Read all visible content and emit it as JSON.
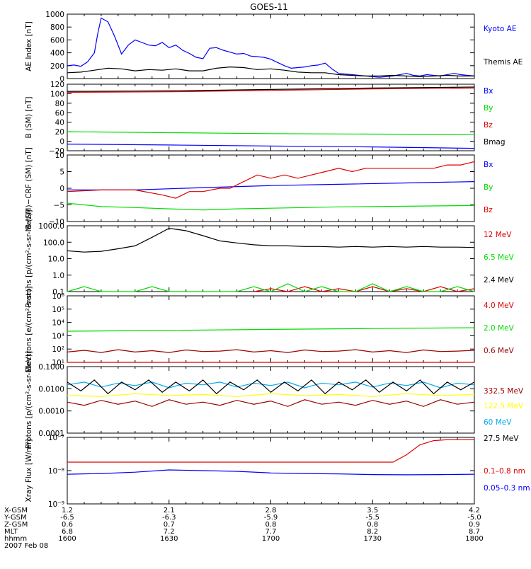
{
  "title": "GOES-11",
  "date": "2007 Feb 08",
  "colors": {
    "black": "#000000",
    "blue": "#0000ff",
    "green": "#00dd00",
    "red": "#dd0000",
    "darkred": "#990000",
    "cyan": "#00aaee",
    "yellow": "#ffff00"
  },
  "orbit": {
    "rows": [
      {
        "label": "X-GSM",
        "values": [
          "1.2",
          "2.1",
          "2.8",
          "3.5",
          "4.2"
        ]
      },
      {
        "label": "Y-GSM",
        "values": [
          "-6.5",
          "-6.3",
          "-5.9",
          "-5.5",
          "-5.0"
        ]
      },
      {
        "label": "Z-GSM",
        "values": [
          "0.6",
          "0.7",
          "0.8",
          "0.8",
          "0.9"
        ]
      },
      {
        "label": "MLT",
        "values": [
          "6.8",
          "7.2",
          "7.7",
          "8.2",
          "8.7"
        ]
      },
      {
        "label": "hhmm",
        "values": [
          "1600",
          "1630",
          "1700",
          "1730",
          "1800"
        ]
      }
    ]
  },
  "chart_data": [
    {
      "type": "line",
      "panel": "ae",
      "ylabel": "AE Index [nT]",
      "ylim": [
        0,
        1000
      ],
      "ytick_labels": [
        "1000",
        "800",
        "600",
        "400",
        "200",
        "0"
      ],
      "series": [
        {
          "name": "Kyoto AE",
          "color": "blue",
          "x": [
            0,
            2,
            4,
            6,
            8,
            9,
            10,
            12,
            14,
            16,
            18,
            20,
            22,
            24,
            26,
            28,
            30,
            32,
            34,
            36,
            38,
            40,
            42,
            44,
            46,
            48,
            50,
            52,
            54,
            56,
            58,
            60,
            62,
            64,
            66,
            68,
            70,
            72,
            74,
            76,
            78,
            80,
            82,
            84,
            86,
            88,
            90,
            92,
            94,
            96,
            98,
            100,
            102,
            104,
            106,
            108,
            110,
            112,
            114,
            116,
            118,
            120
          ],
          "y": [
            200,
            210,
            190,
            260,
            400,
            700,
            940,
            880,
            650,
            380,
            520,
            600,
            560,
            520,
            510,
            560,
            480,
            520,
            440,
            390,
            330,
            310,
            470,
            480,
            440,
            410,
            380,
            390,
            350,
            340,
            330,
            300,
            250,
            200,
            160,
            170,
            180,
            200,
            210,
            240,
            150,
            80,
            70,
            60,
            50,
            40,
            30,
            20,
            30,
            40,
            60,
            80,
            50,
            40,
            60,
            50,
            40,
            60,
            80,
            60,
            50,
            40
          ]
        },
        {
          "name": "Themis AE",
          "color": "black",
          "x": [
            0,
            4,
            8,
            12,
            16,
            20,
            24,
            28,
            32,
            36,
            40,
            44,
            48,
            52,
            56,
            60,
            64,
            68,
            72,
            76,
            80,
            84,
            88,
            92,
            96,
            100,
            104,
            108,
            112,
            116,
            120
          ],
          "y": [
            90,
            100,
            130,
            160,
            150,
            120,
            140,
            130,
            150,
            120,
            120,
            160,
            180,
            170,
            140,
            150,
            130,
            100,
            90,
            90,
            60,
            50,
            40,
            40,
            50,
            40,
            30,
            40,
            50,
            40,
            40
          ]
        }
      ]
    },
    {
      "type": "line",
      "panel": "b",
      "ylabel": "B (SM) [nT]",
      "ylim": [
        -20,
        120
      ],
      "ytick_labels": [
        "120",
        "100",
        "80",
        "60",
        "40",
        "20",
        "0",
        "−20"
      ],
      "series": [
        {
          "name": "Bx",
          "color": "blue",
          "x": [
            0,
            30,
            60,
            90,
            120
          ],
          "y": [
            -6,
            -8,
            -10,
            -12,
            -15
          ]
        },
        {
          "name": "By",
          "color": "green",
          "x": [
            0,
            30,
            60,
            90,
            120
          ],
          "y": [
            20,
            18,
            16,
            15,
            14
          ]
        },
        {
          "name": "Bz",
          "color": "red",
          "x": [
            0,
            30,
            60,
            90,
            120
          ],
          "y": [
            103,
            104,
            107,
            110,
            112
          ]
        },
        {
          "name": "Bmag",
          "color": "black",
          "x": [
            0,
            30,
            60,
            90,
            120
          ],
          "y": [
            105,
            106,
            109,
            112,
            114
          ]
        }
      ]
    },
    {
      "type": "line",
      "panel": "bdiff",
      "ylabel": "B (SM)−CRF (SM) [nT]",
      "ylim": [
        -10,
        10
      ],
      "ytick_labels": [
        "10",
        "5",
        "0",
        "−5",
        "−10"
      ],
      "series": [
        {
          "name": "Bx",
          "color": "blue",
          "x": [
            0,
            20,
            40,
            60,
            80,
            100,
            120
          ],
          "y": [
            -0.5,
            -0.5,
            0.2,
            0.8,
            1.2,
            1.6,
            2.0
          ]
        },
        {
          "name": "By",
          "color": "green",
          "x": [
            0,
            10,
            20,
            30,
            40,
            50,
            60,
            70,
            80,
            90,
            100,
            110,
            120
          ],
          "y": [
            -4.5,
            -5.5,
            -5.8,
            -6.2,
            -6.5,
            -6.2,
            -6.0,
            -5.8,
            -5.6,
            -5.5,
            -5.4,
            -5.3,
            -5.2
          ]
        },
        {
          "name": "Bz",
          "color": "red",
          "x": [
            0,
            10,
            20,
            28,
            32,
            36,
            40,
            45,
            48,
            52,
            56,
            60,
            64,
            68,
            72,
            76,
            80,
            84,
            88,
            92,
            96,
            100,
            104,
            108,
            112,
            116,
            120
          ],
          "y": [
            -1,
            -0.5,
            -0.5,
            -2,
            -3,
            -1,
            -1,
            0,
            0,
            2,
            4,
            3,
            4,
            3,
            4,
            5,
            6,
            5,
            6,
            6,
            6,
            6,
            6,
            6,
            7,
            7,
            8
          ]
        }
      ]
    },
    {
      "type": "line",
      "panel": "protons",
      "yscale": "log",
      "ylabel": "Protons [p/(cm²-s-sr-MeV)]",
      "ylim": [
        0.1,
        1000
      ],
      "ytick_labels": [
        "1000.0",
        "100.0",
        "10.0",
        "1.0",
        "0.1"
      ],
      "series": [
        {
          "name": "12 MeV",
          "color": "red",
          "x": [
            55,
            60,
            65,
            70,
            75,
            80,
            85,
            90,
            95,
            100,
            105,
            110,
            115,
            120
          ],
          "y": [
            0.1,
            0.15,
            0.1,
            0.2,
            0.1,
            0.15,
            0.1,
            0.2,
            0.1,
            0.15,
            0.1,
            0.2,
            0.1,
            0.15
          ]
        },
        {
          "name": "6.5 MeV",
          "color": "green",
          "x": [
            0,
            5,
            10,
            15,
            20,
            25,
            30,
            35,
            40,
            45,
            50,
            55,
            60,
            65,
            70,
            75,
            80,
            85,
            90,
            95,
            100,
            105,
            110,
            115,
            120
          ],
          "y": [
            0.1,
            0.2,
            0.1,
            0.1,
            0.1,
            0.2,
            0.1,
            0.1,
            0.1,
            0.1,
            0.1,
            0.2,
            0.1,
            0.3,
            0.1,
            0.2,
            0.1,
            0.1,
            0.3,
            0.1,
            0.2,
            0.1,
            0.1,
            0.2,
            0.1
          ]
        },
        {
          "name": "2.4 MeV",
          "color": "black",
          "x": [
            0,
            5,
            10,
            15,
            20,
            25,
            30,
            35,
            40,
            45,
            50,
            55,
            60,
            65,
            70,
            75,
            80,
            85,
            90,
            95,
            100,
            105,
            110,
            115,
            120
          ],
          "y": [
            30,
            25,
            28,
            40,
            60,
            200,
            700,
            500,
            250,
            120,
            90,
            70,
            60,
            60,
            55,
            55,
            50,
            55,
            50,
            55,
            50,
            55,
            50,
            50,
            48
          ]
        }
      ]
    },
    {
      "type": "line",
      "panel": "electrons",
      "yscale": "log",
      "ylabel": "Electrons [e/(cm²-s-sr)]",
      "ylim": [
        10,
        1000000
      ],
      "ytick_labels": [
        "10⁶",
        "10⁵",
        "10⁴",
        "10³",
        "10²",
        "10¹"
      ],
      "series": [
        {
          "name": "4.0 MeV",
          "color": "red",
          "x": [
            0,
            120
          ],
          "y": [
            10,
            10
          ]
        },
        {
          "name": "2.0 MeV",
          "color": "green",
          "x": [
            0,
            30,
            60,
            90,
            120
          ],
          "y": [
            2200,
            2500,
            3000,
            3500,
            4000
          ]
        },
        {
          "name": "0.6 MeV",
          "color": "darkred",
          "x": [
            0,
            5,
            10,
            15,
            20,
            25,
            30,
            35,
            40,
            45,
            50,
            55,
            60,
            65,
            70,
            75,
            80,
            85,
            90,
            95,
            100,
            105,
            110,
            115,
            120
          ],
          "y": [
            60,
            80,
            55,
            90,
            60,
            75,
            55,
            85,
            65,
            70,
            90,
            60,
            75,
            55,
            85,
            65,
            70,
            90,
            60,
            75,
            55,
            85,
            65,
            70,
            80
          ]
        }
      ]
    },
    {
      "type": "line",
      "panel": "hiprotons",
      "yscale": "log",
      "ylabel": "Protons [p/(cm²-s-sr-MeV)]",
      "ylim": [
        0.0001,
        0.1
      ],
      "ytick_labels": [
        "0.1000",
        "0.0100",
        "0.0010",
        "0.0001"
      ],
      "series": [
        {
          "name": "332.5 MeV",
          "color": "darkred",
          "x": [
            0,
            5,
            10,
            15,
            20,
            25,
            30,
            35,
            40,
            45,
            50,
            55,
            60,
            65,
            70,
            75,
            80,
            85,
            90,
            95,
            100,
            105,
            110,
            115,
            120
          ],
          "y": [
            0.0025,
            0.0018,
            0.003,
            0.002,
            0.0028,
            0.0016,
            0.0032,
            0.002,
            0.0025,
            0.0018,
            0.003,
            0.002,
            0.0028,
            0.0016,
            0.0032,
            0.002,
            0.0025,
            0.0018,
            0.003,
            0.002,
            0.0028,
            0.0016,
            0.0032,
            0.002,
            0.0025
          ]
        },
        {
          "name": "122.5 MeV",
          "color": "yellow",
          "x": [
            0,
            10,
            20,
            30,
            40,
            50,
            60,
            70,
            80,
            90,
            100,
            110,
            120
          ],
          "y": [
            0.005,
            0.0045,
            0.006,
            0.005,
            0.0055,
            0.0045,
            0.006,
            0.005,
            0.0055,
            0.0045,
            0.006,
            0.005,
            0.0055
          ]
        },
        {
          "name": "60 MeV",
          "color": "cyan",
          "x": [
            0,
            5,
            10,
            15,
            20,
            25,
            30,
            35,
            40,
            45,
            50,
            55,
            60,
            65,
            70,
            75,
            80,
            85,
            90,
            95,
            100,
            105,
            110,
            115,
            120
          ],
          "y": [
            0.015,
            0.02,
            0.012,
            0.018,
            0.014,
            0.02,
            0.011,
            0.018,
            0.015,
            0.02,
            0.012,
            0.018,
            0.014,
            0.02,
            0.011,
            0.018,
            0.015,
            0.02,
            0.012,
            0.018,
            0.014,
            0.02,
            0.011,
            0.018,
            0.015
          ]
        },
        {
          "name": "27.5 MeV",
          "color": "black",
          "x": [
            0,
            4,
            8,
            12,
            16,
            20,
            24,
            28,
            32,
            36,
            40,
            44,
            48,
            52,
            56,
            60,
            64,
            68,
            72,
            76,
            80,
            84,
            88,
            92,
            96,
            100,
            104,
            108,
            112,
            116,
            120
          ],
          "y": [
            0.02,
            0.008,
            0.025,
            0.006,
            0.02,
            0.009,
            0.025,
            0.007,
            0.02,
            0.008,
            0.025,
            0.006,
            0.02,
            0.009,
            0.025,
            0.007,
            0.02,
            0.008,
            0.025,
            0.006,
            0.02,
            0.009,
            0.025,
            0.007,
            0.02,
            0.008,
            0.025,
            0.006,
            0.02,
            0.009,
            0.02
          ]
        }
      ]
    },
    {
      "type": "line",
      "panel": "xray",
      "yscale": "log",
      "ylabel": "Xray Flux [W/m²]",
      "ylim": [
        1e-09,
        1e-07
      ],
      "ytick_labels": [
        "10⁻⁷",
        "10⁻⁸",
        "10⁻⁹"
      ],
      "series": [
        {
          "name": "0.1–0.8 nm",
          "color": "red",
          "x": [
            0,
            20,
            40,
            60,
            80,
            96,
            100,
            104,
            108,
            112,
            116,
            120
          ],
          "y": [
            1.8e-08,
            1.8e-08,
            1.8e-08,
            1.8e-08,
            1.8e-08,
            1.8e-08,
            3e-08,
            6e-08,
            8e-08,
            8.5e-08,
            8.5e-08,
            8.5e-08
          ]
        },
        {
          "name": "0.05–0.3 nm",
          "color": "blue",
          "x": [
            0,
            10,
            20,
            30,
            40,
            50,
            60,
            70,
            80,
            90,
            100,
            110,
            120
          ],
          "y": [
            7.8e-09,
            8.2e-09,
            9e-09,
            1.05e-08,
            1e-08,
            9.5e-09,
            8.5e-09,
            8.2e-09,
            8e-09,
            7.6e-09,
            7.5e-09,
            7.6e-09,
            7.8e-09
          ]
        }
      ]
    }
  ]
}
